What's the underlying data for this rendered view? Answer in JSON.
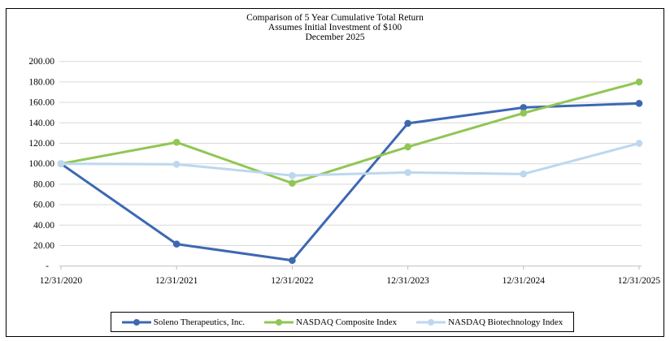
{
  "title": {
    "line1": "Comparison of 5 Year Cumulative Total Return",
    "line2": "Assumes Initial Investment of $100",
    "line3": "December 2025"
  },
  "chart_data": {
    "type": "line",
    "x": [
      "12/31/2020",
      "12/31/2021",
      "12/31/2022",
      "12/31/2023",
      "12/31/2024",
      "12/31/2025"
    ],
    "series": [
      {
        "name": "Soleno Therapeutics, Inc.",
        "color": "#3D68B2",
        "values": [
          100.0,
          21.5,
          5.5,
          139.5,
          155.0,
          159.0
        ]
      },
      {
        "name": "NASDAQ Composite Index",
        "color": "#90C653",
        "values": [
          100.0,
          121.0,
          81.0,
          116.5,
          149.5,
          180.0
        ]
      },
      {
        "name": "NASDAQ Biotechnology Index",
        "color": "#BDD7EE",
        "values": [
          100.0,
          99.5,
          88.5,
          91.5,
          90.0,
          120.0
        ]
      }
    ],
    "ylim": [
      0,
      200
    ],
    "ytick_step": 20,
    "ytick_labels": [
      "-",
      "20.00",
      "40.00",
      "60.00",
      "80.00",
      "100.00",
      "120.00",
      "140.00",
      "160.00",
      "180.00",
      "200.00"
    ],
    "grid": "horizontal",
    "legend_position": "bottom",
    "gridline_color": "#D9D9D9",
    "axis_color": "#BFBFBF",
    "marker": "circle"
  }
}
